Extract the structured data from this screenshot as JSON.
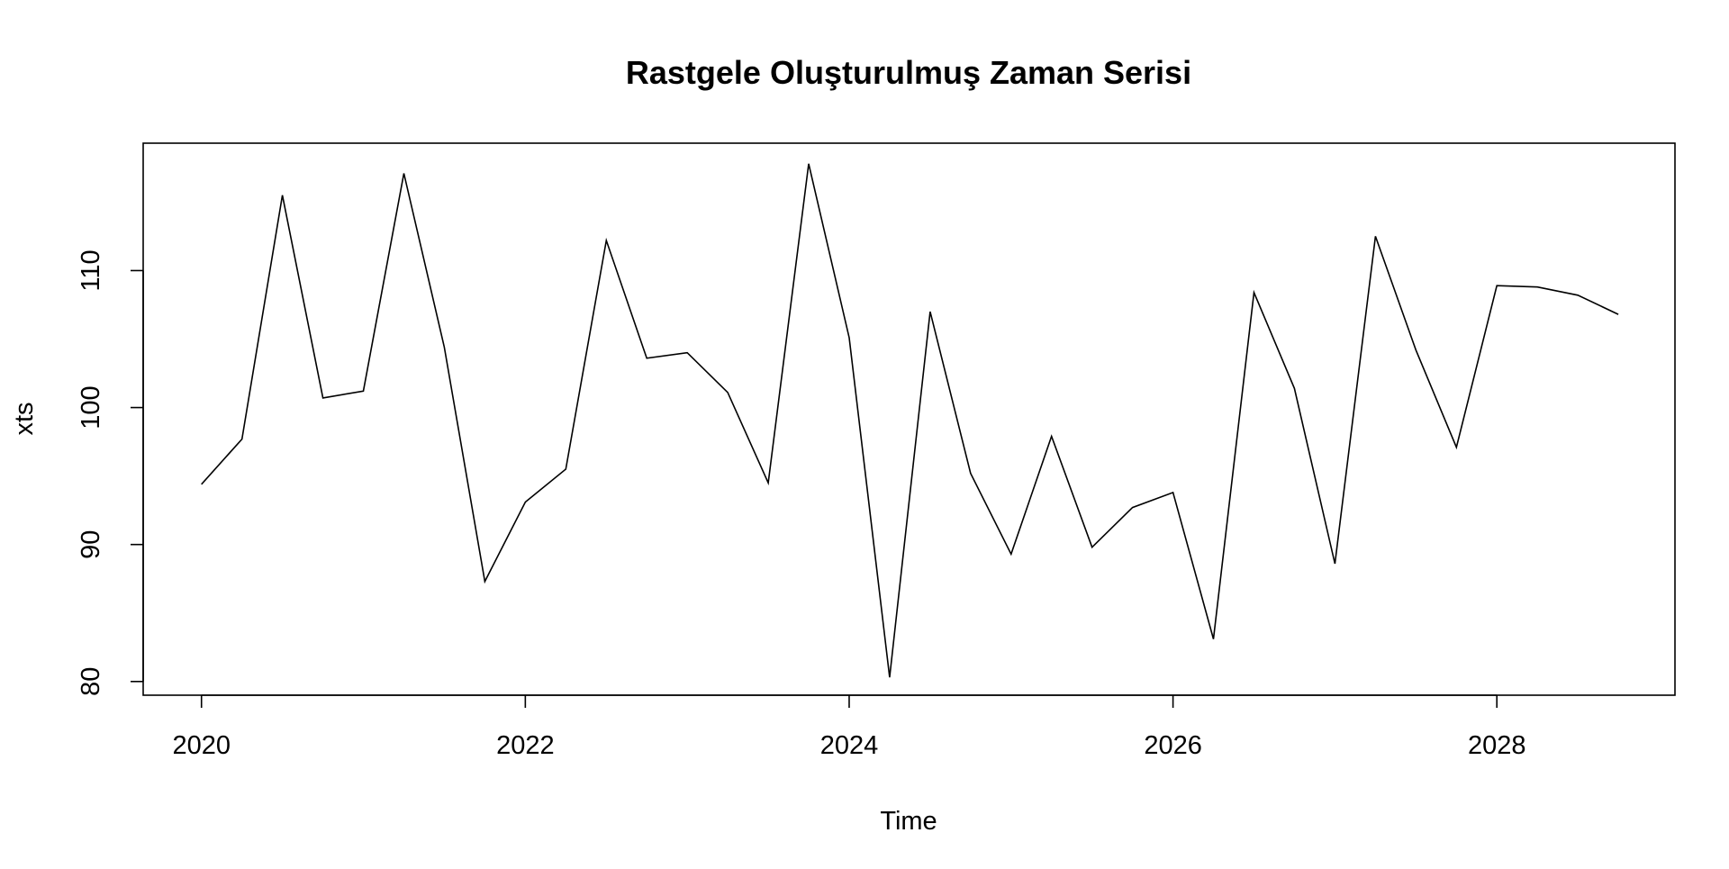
{
  "chart_data": {
    "type": "line",
    "title": "Rastgele Oluşturulmuş Zaman Serisi",
    "xlabel": "Time",
    "ylabel": "xts",
    "x_start": 2020.0,
    "x_step": 0.25,
    "xlim": [
      2019.64,
      2029.1
    ],
    "ylim": [
      79,
      119.3
    ],
    "x_ticks": [
      2020,
      2022,
      2024,
      2026,
      2028
    ],
    "x_tick_labels": [
      "2020",
      "2022",
      "2024",
      "2026",
      "2028"
    ],
    "y_ticks": [
      80,
      90,
      100,
      110
    ],
    "y_tick_labels": [
      "80",
      "90",
      "100",
      "110"
    ],
    "grid": false,
    "legend": "none",
    "line_color": "#000000",
    "series": [
      {
        "values": [
          94.4,
          97.7,
          115.5,
          100.7,
          101.2,
          117.1,
          104.4,
          87.3,
          93.1,
          95.5,
          112.2,
          103.6,
          104.0,
          101.1,
          94.5,
          117.8,
          105.1,
          80.3,
          107.0,
          95.2,
          89.3,
          97.9,
          89.8,
          92.7,
          93.8,
          83.1,
          108.4,
          101.4,
          88.6,
          112.5,
          104.2,
          97.1,
          108.9,
          108.8,
          108.2,
          106.8
        ]
      }
    ]
  }
}
